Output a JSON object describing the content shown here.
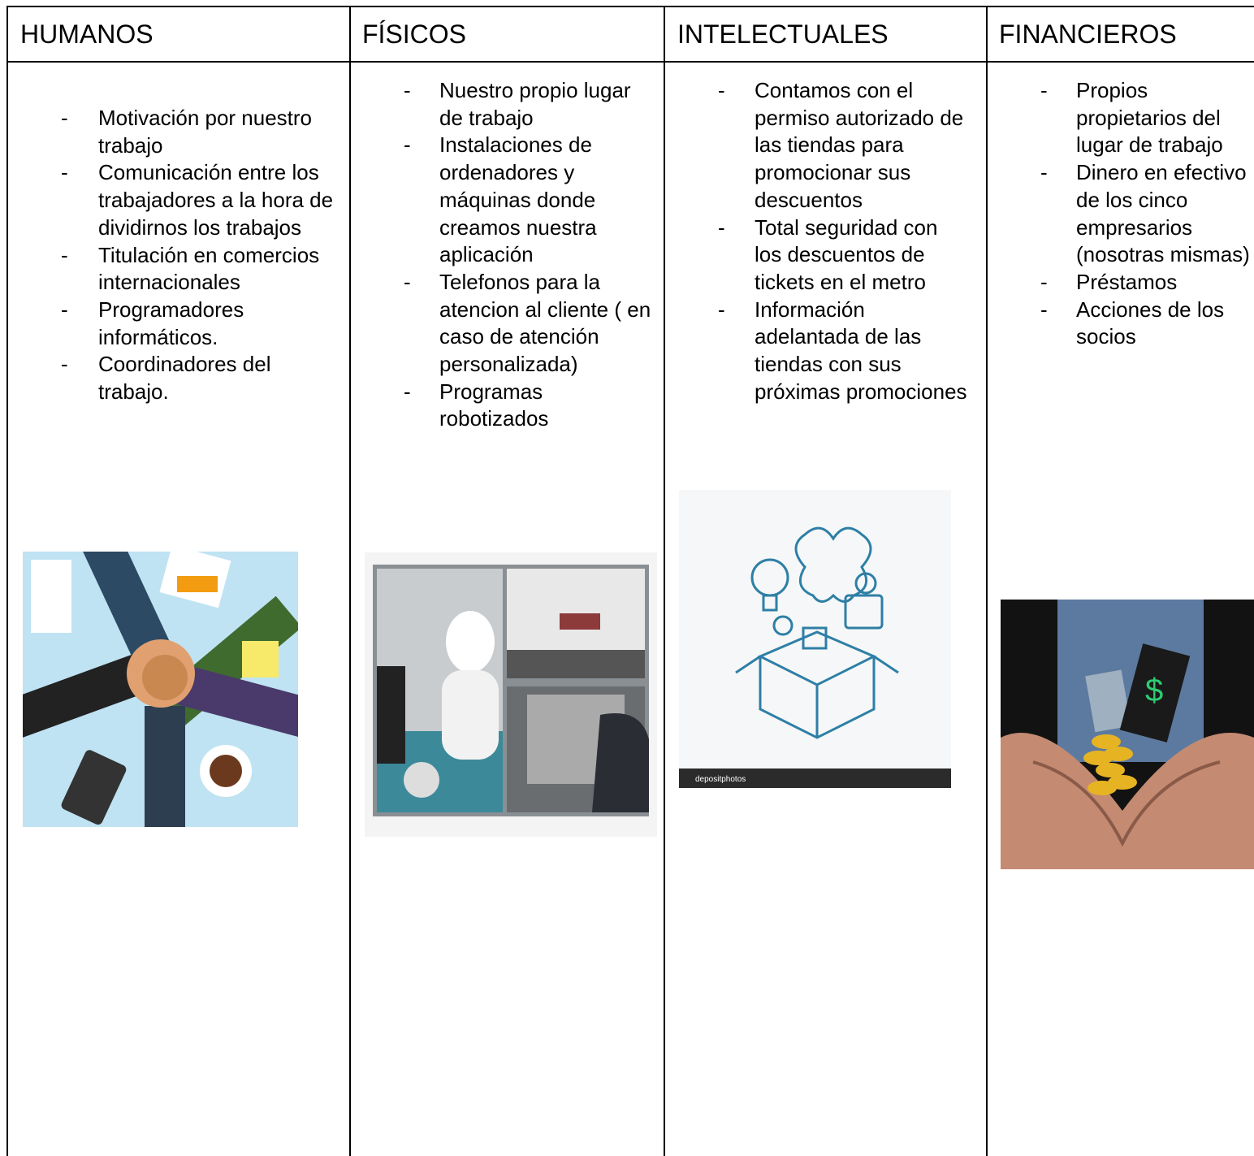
{
  "columns": [
    {
      "header": "HUMANOS",
      "items": [
        "Motivación por nuestro trabajo",
        "Comunicación entre los trabajadores a la hora de dividirnos los trabajos",
        "Titulación en comercios internacionales",
        "Programadores informáticos.",
        "Coordinadores del trabajo."
      ]
    },
    {
      "header": "FÍSICOS",
      "items": [
        "Nuestro propio lugar de trabajo",
        "Instalaciones de ordenadores y máquinas donde creamos nuestra aplicación",
        "Telefonos para la atencion al cliente ( en caso de atención personalizada)",
        "Programas robotizados"
      ]
    },
    {
      "header": "INTELECTUALES",
      "items": [
        "Contamos con el permiso autorizado de las tiendas para promocionar sus descuentos",
        "Total seguridad con los descuentos de tickets en el metro",
        "Información adelantada de las tiendas con sus próximas promociones"
      ]
    },
    {
      "header": "FINANCIEROS",
      "items": [
        "Propios propietarios  del lugar de trabajo",
        "Dinero en efectivo de los cinco empresarios (nosotras mismas)",
        "Préstamos",
        "Acciones de los socios"
      ]
    }
  ],
  "watermark": "depositphotos"
}
